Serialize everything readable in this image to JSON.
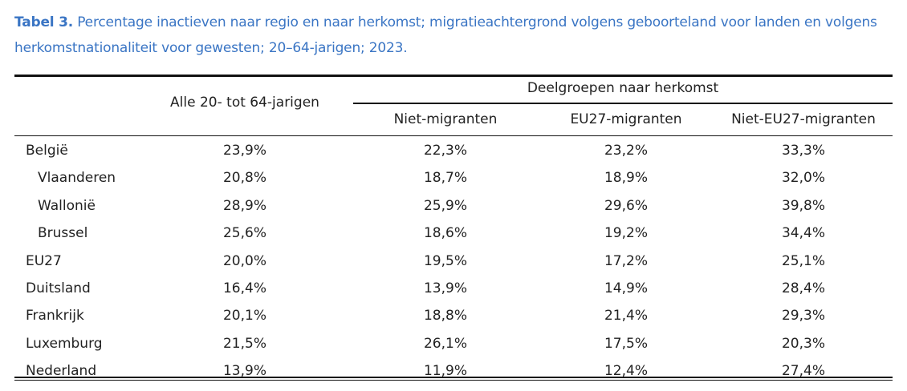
{
  "caption": {
    "label": "Tabel 3.",
    "text": "Percentage inactieven naar regio en naar herkomst; migratieachtergrond volgens geboorteland voor landen en volgens herkomstnationaliteit voor gewesten; 20–64-jarigen; 2023."
  },
  "header": {
    "all": "Alle 20- tot 64-jarigen",
    "group": "Deelgroepen naar herkomst",
    "columns": [
      "Niet-migranten",
      "EU27-migranten",
      "Niet-EU27-migranten"
    ]
  },
  "rows": [
    {
      "label": "België",
      "indent": false,
      "values": [
        "23,9%",
        "22,3%",
        "23,2%",
        "33,3%"
      ]
    },
    {
      "label": "Vlaanderen",
      "indent": true,
      "values": [
        "20,8%",
        "18,7%",
        "18,9%",
        "32,0%"
      ]
    },
    {
      "label": "Wallonië",
      "indent": true,
      "values": [
        "28,9%",
        "25,9%",
        "29,6%",
        "39,8%"
      ]
    },
    {
      "label": "Brussel",
      "indent": true,
      "values": [
        "25,6%",
        "18,6%",
        "19,2%",
        "34,4%"
      ]
    },
    {
      "label": "EU27",
      "indent": false,
      "values": [
        "20,0%",
        "19,5%",
        "17,2%",
        "25,1%"
      ]
    },
    {
      "label": "Duitsland",
      "indent": false,
      "values": [
        "16,4%",
        "13,9%",
        "14,9%",
        "28,4%"
      ]
    },
    {
      "label": "Frankrijk",
      "indent": false,
      "values": [
        "20,1%",
        "18,8%",
        "21,4%",
        "29,3%"
      ]
    },
    {
      "label": "Luxemburg",
      "indent": false,
      "values": [
        "21,5%",
        "26,1%",
        "17,5%",
        "20,3%"
      ]
    },
    {
      "label": "Nederland",
      "indent": false,
      "values": [
        "13,9%",
        "11,9%",
        "12,4%",
        "27,4%"
      ]
    }
  ]
}
